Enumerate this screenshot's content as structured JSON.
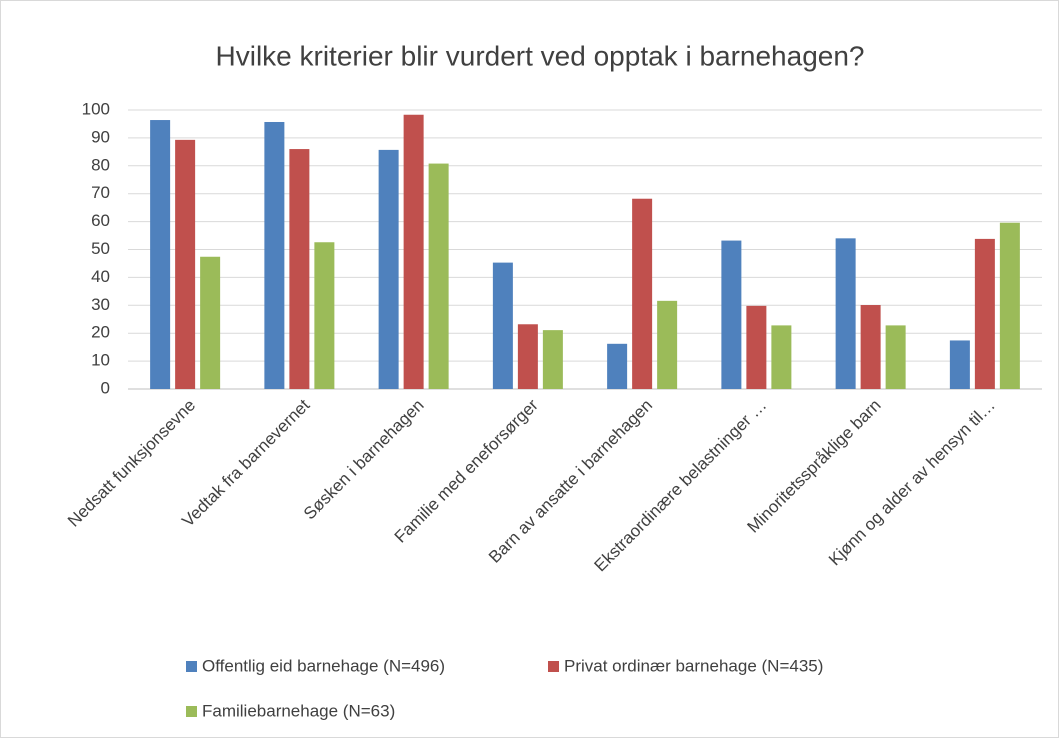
{
  "chart_data": {
    "type": "bar",
    "title": "Hvilke kriterier blir vurdert ved opptak i barnehagen?",
    "categories": [
      "Nedsatt funksjonsevne",
      "Vedtak fra barnevernet",
      "Søsken i barnehagen",
      "Familie med eneforsørger",
      "Barn av ansatte i barnehagen",
      "Ekstraordinære belastninger …",
      "Minoritetsspråklige barn",
      "Kjønn og alder av hensyn til…"
    ],
    "series": [
      {
        "name": "Offentlig eid barnehage (N=496)",
        "color": "#4f81bd",
        "values": [
          96.4,
          95.7,
          85.7,
          45.3,
          16.2,
          53.2,
          54.0,
          17.4
        ]
      },
      {
        "name": "Privat ordinær barnehage (N=435)",
        "color": "#c0504d",
        "values": [
          89.3,
          86.0,
          98.3,
          23.2,
          68.2,
          29.8,
          30.1,
          53.8
        ]
      },
      {
        "name": "Familiebarnehage (N=63)",
        "color": "#9bbb59",
        "values": [
          47.4,
          52.6,
          80.8,
          21.1,
          31.6,
          22.8,
          22.8,
          59.6
        ]
      }
    ],
    "ylim": [
      0,
      100
    ],
    "yticks": [
      0,
      10,
      20,
      30,
      40,
      50,
      60,
      70,
      80,
      90,
      100
    ],
    "grid": true
  }
}
